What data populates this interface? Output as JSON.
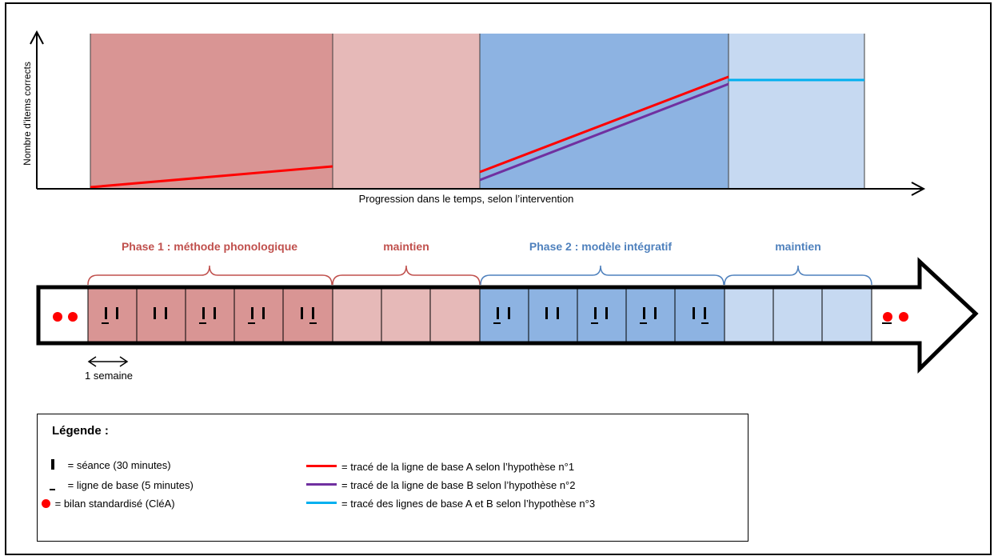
{
  "chart": {
    "y_axis_label": "Nombre d'items corrects",
    "x_axis_label": "Progression dans le temps, selon l’intervention",
    "colors": {
      "phase1": "#d99594",
      "maintien1": "#e6b9b8",
      "phase2": "#8db3e2",
      "maintien2": "#c6d9f1",
      "line_a": "#ff0000",
      "line_b": "#7030a0",
      "line_ab": "#00b0f0"
    }
  },
  "timeline": {
    "brackets": [
      {
        "label": "Phase 1 : méthode phonologique",
        "color": "#c0504d"
      },
      {
        "label": "maintien",
        "color": "#c0504d"
      },
      {
        "label": "Phase 2 : modèle intégratif",
        "color": "#4f81bd"
      },
      {
        "label": "maintien",
        "color": "#4f81bd"
      }
    ],
    "week_label": "1 semaine",
    "dot_color": "#ff0000"
  },
  "legend": {
    "title": "Légende :",
    "items": [
      {
        "symbol": "bar",
        "text": "= séance (30 minutes)"
      },
      {
        "symbol": "under",
        "text": "= ligne de base (5 minutes)"
      },
      {
        "symbol": "dot",
        "text": "= bilan standardisé (CléA)"
      }
    ],
    "lines": [
      {
        "color": "#ff0000",
        "text": "= tracé de la ligne de base A selon l’hypothèse  n°1"
      },
      {
        "color": "#7030a0",
        "text": "= tracé de la ligne de base B selon l’hypothèse  n°2"
      },
      {
        "color": "#00b0f0",
        "text": "= tracé des lignes de base A et B selon l’hypothèse  n°3"
      }
    ]
  }
}
